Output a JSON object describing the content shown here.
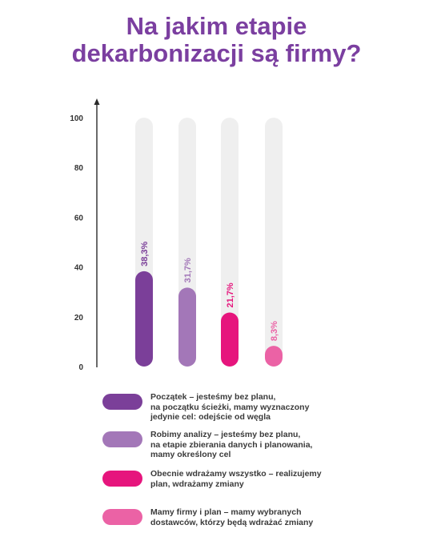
{
  "title_line1": "Na jakim etapie",
  "title_line2": "dekarbonizacji są firmy?",
  "colors": {
    "title": "#7b3fa0",
    "track": "#efefef",
    "axis": "#2a2a2a"
  },
  "chart_data": {
    "type": "bar",
    "title": "Na jakim etapie dekarbonizacji są firmy?",
    "categories": [
      "Początek – jesteśmy bez planu, na początku ścieżki, mamy wyznaczony jedynie cel: odejście od węgla",
      "Robimy analizy – jesteśmy bez planu, na etapie zbierania danych i planowania, mamy określony cel",
      "Obecnie wdrażamy wszystko – realizujemy plan, wdrażamy zmiany",
      "Mamy firmy i plan – mamy wybranych dostawców, którzy będą wdrażać zmiany"
    ],
    "values": [
      38.3,
      31.7,
      21.7,
      8.3
    ],
    "value_labels": [
      "38,3%",
      "31,7%",
      "21,7%",
      "8,3%"
    ],
    "colors": [
      "#7b3f99",
      "#a377b8",
      "#e6157d",
      "#eb62a5"
    ],
    "label_colors": [
      "#7b3f99",
      "#a377b8",
      "#e6157d",
      "#eb62a5"
    ],
    "ylim": [
      0,
      100
    ],
    "yticks": [
      "0",
      "20",
      "40",
      "60",
      "80",
      "100"
    ],
    "ytick_values": [
      0,
      20,
      40,
      60,
      80,
      100
    ],
    "xlabel": "",
    "ylabel": "",
    "legend_position": "bottom",
    "grid": false
  },
  "legend": [
    {
      "line1": "Początek – jesteśmy bez planu,",
      "line2": "na początku ścieżki, mamy wyznaczony",
      "line3": "jedynie cel: odejście od węgla",
      "color": "#7b3f99"
    },
    {
      "line1": "Robimy analizy – jesteśmy bez planu,",
      "line2": "na etapie zbierania danych i planowania,",
      "line3": "mamy określony cel",
      "color": "#a377b8"
    },
    {
      "line1": "Obecnie wdrażamy wszystko – realizujemy",
      "line2": "plan, wdrażamy zmiany",
      "line3": "",
      "color": "#e6157d"
    },
    {
      "line1": "Mamy firmy i plan – mamy wybranych",
      "line2": "dostawców, którzy będą wdrażać zmiany",
      "line3": "",
      "color": "#eb62a5"
    }
  ]
}
